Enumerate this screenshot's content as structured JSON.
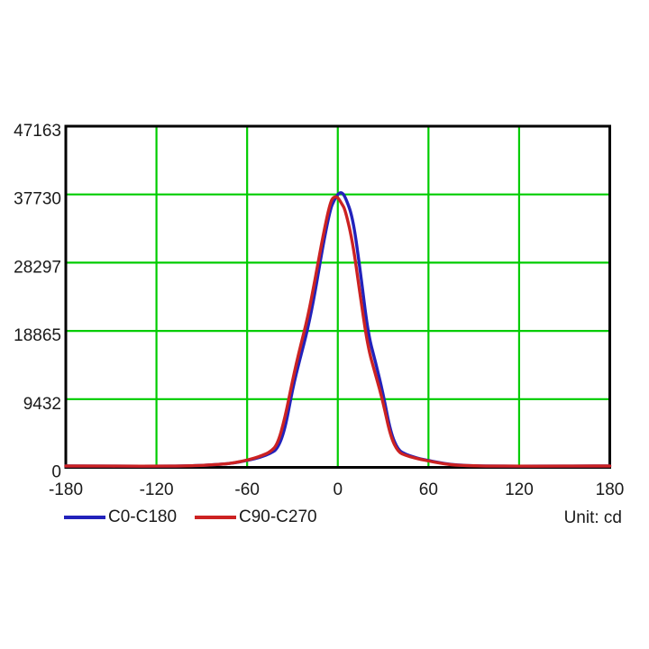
{
  "page": {
    "background": "#ffffff",
    "unit_label": "Unit: cd"
  },
  "chart_data": {
    "type": "line",
    "title": "",
    "xlabel": "",
    "ylabel": "",
    "unit_label": "Unit: cd",
    "xlim": [
      -180,
      180
    ],
    "ylim": [
      0,
      47163
    ],
    "x_ticks": [
      -180,
      -120,
      -60,
      0,
      60,
      120,
      180
    ],
    "x_tick_labels": [
      "-180",
      "-120",
      "-60",
      "0",
      "60",
      "120",
      "180"
    ],
    "y_ticks": [
      47163,
      37730,
      28297,
      18865,
      9432,
      0
    ],
    "y_tick_labels": [
      "47163",
      "37730",
      "28297",
      "18865",
      "9432",
      "0"
    ],
    "grid": {
      "show": true,
      "color": "#00cc00"
    },
    "axis_color": "#000000",
    "text_color": "#1a1a1a",
    "legend_position": "bottom-left",
    "x": [
      -180,
      -160,
      -140,
      -120,
      -100,
      -90,
      -80,
      -70,
      -60,
      -55,
      -50,
      -45,
      -40,
      -35,
      -30,
      -25,
      -20,
      -15,
      -10,
      -5,
      -2.5,
      0,
      2.5,
      5,
      10,
      15,
      20,
      25,
      30,
      35,
      40,
      45,
      50,
      55,
      60,
      70,
      80,
      90,
      100,
      120,
      140,
      160,
      180
    ],
    "series": [
      {
        "name": "C0-C180",
        "color": "#2222bb",
        "values": [
          190,
          185,
          170,
          160,
          200,
          280,
          390,
          560,
          950,
          1200,
          1500,
          1900,
          2500,
          5200,
          10800,
          15000,
          19000,
          24200,
          30500,
          35700,
          36900,
          37800,
          38050,
          37400,
          34500,
          27000,
          18500,
          14500,
          10200,
          4800,
          2350,
          1800,
          1450,
          1150,
          950,
          520,
          300,
          220,
          185,
          165,
          175,
          185,
          195
        ]
      },
      {
        "name": "C90-C270",
        "color": "#cc2222",
        "values": [
          190,
          185,
          170,
          160,
          200,
          280,
          390,
          560,
          1000,
          1300,
          1650,
          2100,
          3100,
          6800,
          12000,
          16500,
          20600,
          26000,
          31800,
          36700,
          37450,
          37350,
          36500,
          35600,
          31000,
          23500,
          16500,
          12800,
          9000,
          4200,
          2100,
          1650,
          1350,
          1100,
          900,
          480,
          280,
          210,
          180,
          160,
          170,
          180,
          190
        ]
      }
    ]
  }
}
